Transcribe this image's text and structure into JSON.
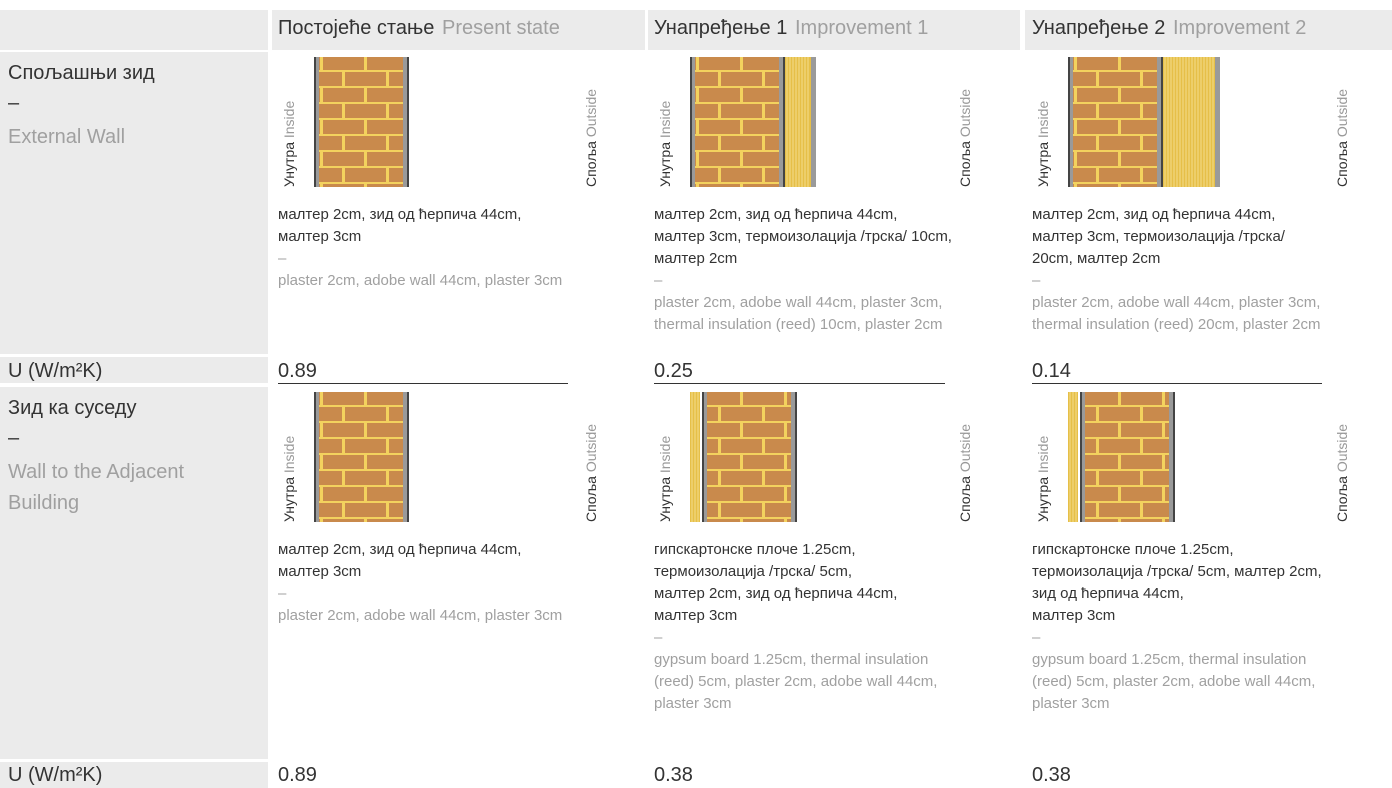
{
  "header": {
    "columns": [
      {
        "sr": "Постојеће стање",
        "en": "Present state"
      },
      {
        "sr": "Унапређење 1",
        "en": "Improvement 1"
      },
      {
        "sr": "Унапређење 2",
        "en": "Improvement 2"
      }
    ]
  },
  "labels": {
    "inside_sr": "Унутра",
    "inside_en": "Inside",
    "outside_sr": "Споља",
    "outside_en": "Outside",
    "separator": "–"
  },
  "rows": [
    {
      "label_sr": "Спољашњи зид",
      "label_en": "External Wall",
      "u_label": "U (W/m²K)",
      "u_values": [
        0.89,
        0.25,
        0.14
      ],
      "cells": [
        {
          "desc_sr": [
            "малтер 2cm, зид од ћерпича 44cm,",
            "малтер 3cm"
          ],
          "desc_en": [
            "plaster 2cm, adobe wall 44cm, plaster 3cm"
          ]
        },
        {
          "desc_sr": [
            "малтер 2cm, зид од ћерпича 44cm,",
            "малтер 3cm, термоизолација /трска/ 10cm,",
            "малтер 2cm"
          ],
          "desc_en": [
            "plaster 2cm, adobe wall 44cm, plaster 3cm,",
            "thermal insulation (reed) 10cm, plaster 2cm"
          ]
        },
        {
          "desc_sr": [
            "малтер 2cm, зид од ћерпича 44cm,",
            " малтер 3cm, термоизолација /трска/",
            "20cm,  малтер 2cm"
          ],
          "desc_en": [
            "plaster 2cm, adobe wall 44cm, plaster 3cm,",
            "thermal insulation (reed) 20cm, plaster 2cm"
          ]
        }
      ]
    },
    {
      "label_sr": "Зид ка суседу",
      "label_en": "Wall to the Adjacent Building",
      "u_label": "U (W/m²K)",
      "u_values": [
        0.89,
        0.38,
        0.38
      ],
      "cells": [
        {
          "desc_sr": [
            "малтер 2cm, зид од ћерпича 44cm,",
            "малтер 3cm"
          ],
          "desc_en": [
            "plaster 2cm, adobe wall 44cm, plaster 3cm"
          ]
        },
        {
          "desc_sr": [
            "гипскартонске плоче 1.25cm,",
            "термоизолација /трска/ 5cm,",
            "малтер 2cm, зид од ћерпича 44cm,",
            "малтер 3cm"
          ],
          "desc_en": [
            "gypsum board 1.25cm, thermal insulation",
            "(reed) 5cm, plaster 2cm, adobe wall 44cm,",
            "plaster 3cm"
          ]
        },
        {
          "desc_sr": [
            "гипскартонске плоче 1.25cm,",
            "термоизолација /трска/ 5cm, малтер 2cm,",
            "зид од ћерпича 44cm,",
            "малтер 3cm"
          ],
          "desc_en": [
            "gypsum board 1.25cm, thermal insulation",
            "(reed) 5cm, plaster 2cm, adobe wall 44cm,",
            "plaster 3cm"
          ]
        }
      ]
    }
  ]
}
